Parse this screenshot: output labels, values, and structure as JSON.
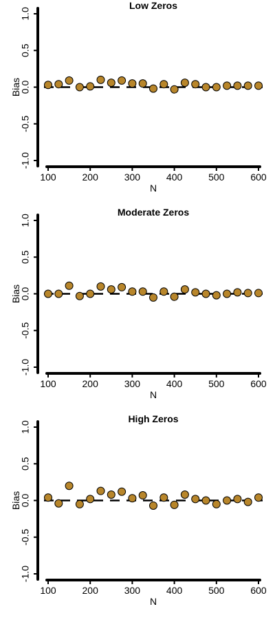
{
  "chart_data": [
    {
      "type": "scatter",
      "title": "Low Zeros",
      "xlabel": "N",
      "ylabel": "Bias",
      "xlim": [
        100,
        600
      ],
      "ylim": [
        -1.0,
        1.0
      ],
      "x_ticks": [
        100,
        200,
        300,
        400,
        500,
        600
      ],
      "y_ticks": [
        -1.0,
        -0.5,
        0.0,
        0.5,
        1.0
      ],
      "y_tick_labels": [
        "-1.0",
        "-0.5",
        "0.0",
        "0.5",
        "1.0"
      ],
      "reference_line": 0,
      "x": [
        100,
        125,
        150,
        175,
        200,
        225,
        250,
        275,
        300,
        325,
        350,
        375,
        400,
        425,
        450,
        475,
        500,
        525,
        550,
        575,
        600
      ],
      "y": [
        0.03,
        0.04,
        0.09,
        0.0,
        0.01,
        0.1,
        0.06,
        0.09,
        0.05,
        0.05,
        -0.02,
        0.04,
        -0.03,
        0.06,
        0.04,
        0.0,
        0.0,
        0.02,
        0.02,
        0.02,
        0.02
      ]
    },
    {
      "type": "scatter",
      "title": "Moderate Zeros",
      "xlabel": "N",
      "ylabel": "Bias",
      "xlim": [
        100,
        600
      ],
      "ylim": [
        -1.0,
        1.0
      ],
      "x_ticks": [
        100,
        200,
        300,
        400,
        500,
        600
      ],
      "y_ticks": [
        -1.0,
        -0.5,
        0.0,
        0.5,
        1.0
      ],
      "y_tick_labels": [
        "-1.0",
        "-0.5",
        "0.0",
        "0.5",
        "1.0"
      ],
      "reference_line": 0,
      "x": [
        100,
        125,
        150,
        175,
        200,
        225,
        250,
        275,
        300,
        325,
        350,
        375,
        400,
        425,
        450,
        475,
        500,
        525,
        550,
        575,
        600
      ],
      "y": [
        0.0,
        0.0,
        0.11,
        -0.03,
        0.0,
        0.1,
        0.06,
        0.09,
        0.03,
        0.03,
        -0.05,
        0.03,
        -0.04,
        0.06,
        0.02,
        0.0,
        -0.02,
        0.0,
        0.02,
        0.01,
        0.01
      ]
    },
    {
      "type": "scatter",
      "title": "High Zeros",
      "xlabel": "N",
      "ylabel": "Bias",
      "xlim": [
        100,
        600
      ],
      "ylim": [
        -1.0,
        1.0
      ],
      "x_ticks": [
        100,
        200,
        300,
        400,
        500,
        600
      ],
      "y_ticks": [
        -1.0,
        -0.5,
        0.0,
        0.5,
        1.0
      ],
      "y_tick_labels": [
        "-1.0",
        "-0.5",
        "0.0",
        "0.5",
        "1.0"
      ],
      "reference_line": 0,
      "x": [
        100,
        125,
        150,
        175,
        200,
        225,
        250,
        275,
        300,
        325,
        350,
        375,
        400,
        425,
        450,
        475,
        500,
        525,
        550,
        575,
        600
      ],
      "y": [
        0.04,
        -0.04,
        0.2,
        -0.05,
        0.02,
        0.13,
        0.08,
        0.12,
        0.03,
        0.07,
        -0.07,
        0.04,
        -0.06,
        0.08,
        0.02,
        0.0,
        -0.05,
        0.0,
        0.02,
        -0.02,
        0.04
      ]
    }
  ],
  "colors": {
    "point_fill": "#b8862b",
    "point_stroke": "#000000",
    "axis": "#000000"
  }
}
